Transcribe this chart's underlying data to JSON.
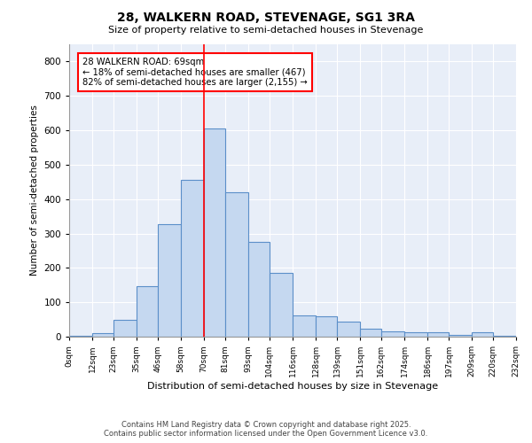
{
  "title": "28, WALKERN ROAD, STEVENAGE, SG1 3RA",
  "subtitle": "Size of property relative to semi-detached houses in Stevenage",
  "xlabel": "Distribution of semi-detached houses by size in Stevenage",
  "ylabel": "Number of semi-detached properties",
  "bin_labels": [
    "0sqm",
    "12sqm",
    "23sqm",
    "35sqm",
    "46sqm",
    "58sqm",
    "70sqm",
    "81sqm",
    "93sqm",
    "104sqm",
    "116sqm",
    "128sqm",
    "139sqm",
    "151sqm",
    "162sqm",
    "174sqm",
    "186sqm",
    "197sqm",
    "209sqm",
    "220sqm",
    "232sqm"
  ],
  "bin_edges": [
    0,
    12,
    23,
    35,
    46,
    58,
    70,
    81,
    93,
    104,
    116,
    128,
    139,
    151,
    162,
    174,
    186,
    197,
    209,
    220,
    232
  ],
  "values": [
    3,
    10,
    50,
    148,
    328,
    455,
    605,
    420,
    275,
    185,
    62,
    58,
    45,
    22,
    15,
    12,
    12,
    5,
    12,
    3
  ],
  "bar_color": "#c5d8f0",
  "bar_edge_color": "#5b8fc9",
  "red_line_x": 70,
  "annotation_title": "28 WALKERN ROAD: 69sqm",
  "annotation_line1": "← 18% of semi-detached houses are smaller (467)",
  "annotation_line2": "82% of semi-detached houses are larger (2,155) →",
  "ylim": [
    0,
    850
  ],
  "yticks": [
    0,
    100,
    200,
    300,
    400,
    500,
    600,
    700,
    800
  ],
  "background_color": "#e8eef8",
  "grid_color": "#ffffff",
  "footer_line1": "Contains HM Land Registry data © Crown copyright and database right 2025.",
  "footer_line2": "Contains public sector information licensed under the Open Government Licence v3.0."
}
